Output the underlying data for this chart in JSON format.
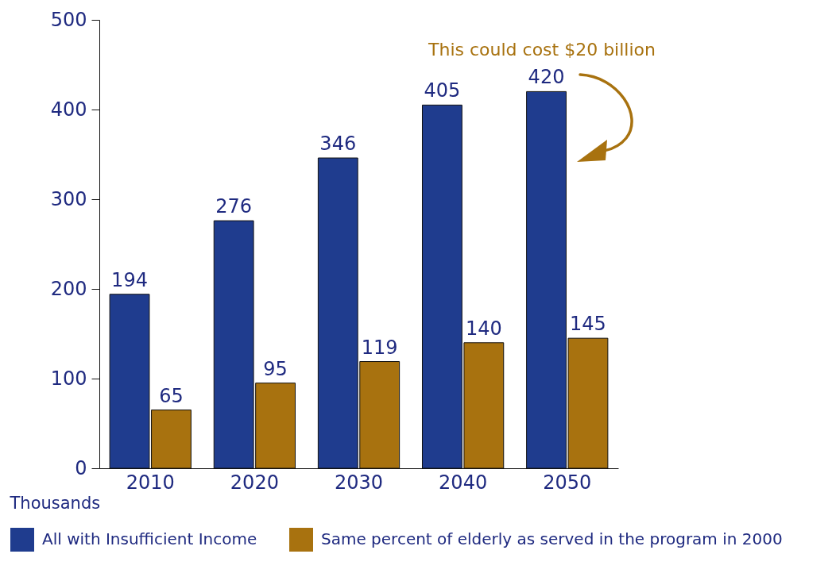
{
  "chart_data": {
    "type": "bar",
    "categories": [
      "2010",
      "2020",
      "2030",
      "2040",
      "2050"
    ],
    "series": [
      {
        "name": "All with Insufficient Income",
        "color": "#1f3c8e",
        "values": [
          194,
          276,
          346,
          405,
          420
        ]
      },
      {
        "name": "Same percent of elderly as served in the program in 2000",
        "color": "#a8720f",
        "values": [
          65,
          95,
          119,
          140,
          145
        ]
      }
    ],
    "ylabel": "Thousands",
    "ylim": [
      0,
      500
    ],
    "yticks": [
      0,
      100,
      200,
      300,
      400,
      500
    ],
    "data_labels": true,
    "grid": false,
    "legend": "bottom",
    "annotations": [
      "This could cost $20 billion"
    ]
  }
}
